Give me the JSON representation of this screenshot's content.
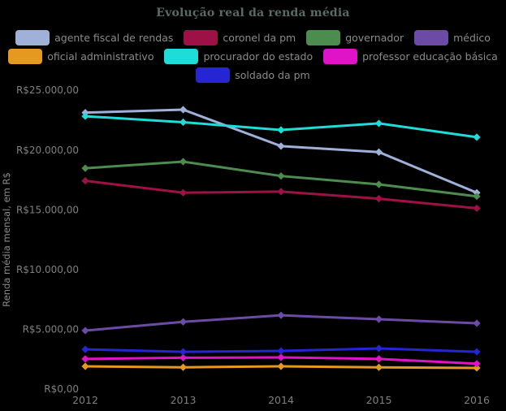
{
  "chart_data": {
    "type": "line",
    "title": "Evolução real da renda média",
    "xlabel": "",
    "ylabel": "Renda média mensal, em R$",
    "categories": [
      "2012",
      "2013",
      "2014",
      "2015",
      "2016"
    ],
    "ylim": [
      0,
      25000
    ],
    "grid": false,
    "legend_position": "top",
    "legend_rows": [
      [
        0,
        1,
        2,
        3
      ],
      [
        4,
        5,
        6
      ],
      [
        7
      ]
    ],
    "yticks": [
      {
        "value": 0,
        "label": "R$0,00"
      },
      {
        "value": 5000,
        "label": "R$5.000,00"
      },
      {
        "value": 10000,
        "label": "R$10.000,00"
      },
      {
        "value": 15000,
        "label": "R$15.000,00"
      },
      {
        "value": 20000,
        "label": "R$20.000,00"
      },
      {
        "value": 25000,
        "label": "R$25.000,00"
      }
    ],
    "series": [
      {
        "name": "agente fiscal de rendas",
        "color": "#9fb1d8",
        "values": [
          23100,
          23350,
          20300,
          19800,
          16400
        ]
      },
      {
        "name": "coronel da pm",
        "color": "#9e1146",
        "values": [
          17400,
          16400,
          16500,
          15900,
          15100
        ]
      },
      {
        "name": "governador",
        "color": "#4c8c4e",
        "values": [
          18450,
          19000,
          17800,
          17100,
          16100
        ]
      },
      {
        "name": "médico",
        "color": "#6b4ba5",
        "values": [
          4870,
          5600,
          6150,
          5820,
          5480
        ]
      },
      {
        "name": "oficial administrativo",
        "color": "#e5991f",
        "values": [
          1880,
          1800,
          1880,
          1800,
          1750
        ]
      },
      {
        "name": "procurador do estado",
        "color": "#1fdcd8",
        "values": [
          22800,
          22300,
          21650,
          22200,
          21050
        ]
      },
      {
        "name": "professor educação básica",
        "color": "#df13c8",
        "values": [
          2500,
          2600,
          2630,
          2500,
          2100
        ]
      },
      {
        "name": "soldado da pm",
        "color": "#2525d4",
        "values": [
          3300,
          3100,
          3170,
          3380,
          3100
        ]
      }
    ],
    "colors": {
      "background": "#000000",
      "tick_text": "#7f7f7f",
      "legend_text": "#8a8a8a",
      "axis_title_text": "#8a8a8a",
      "title_text": "#5a6b66"
    }
  }
}
